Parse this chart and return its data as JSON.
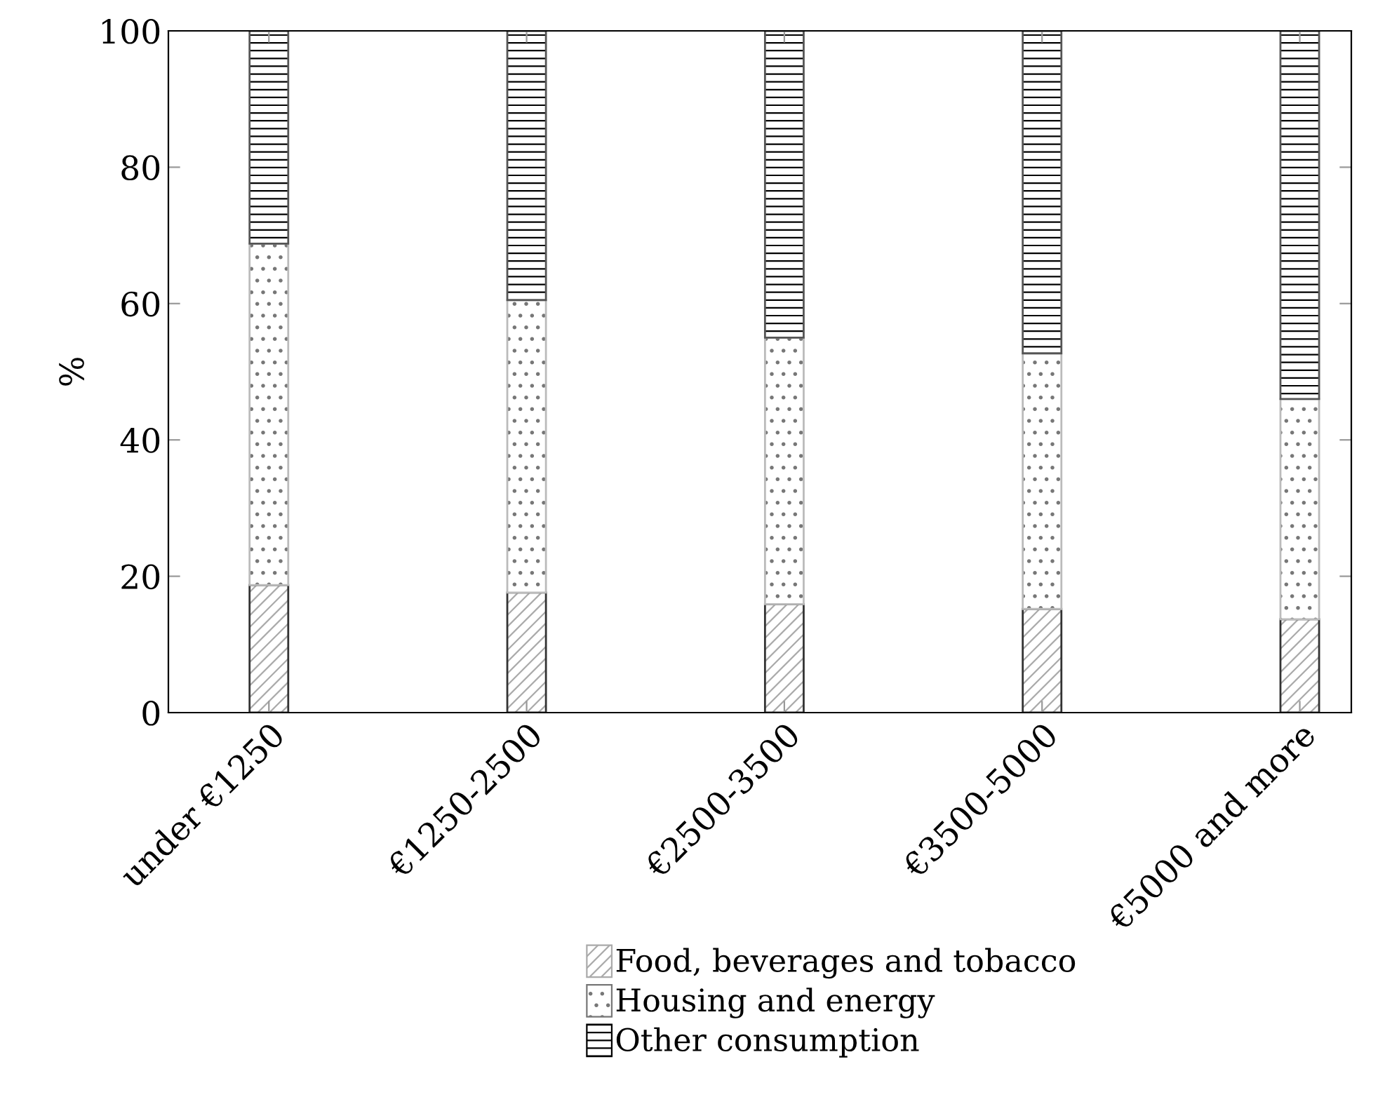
{
  "chart_data": {
    "type": "bar",
    "stacked": true,
    "ylabel": "%",
    "categories": [
      "under €1250",
      "€1250-2500",
      "€2500-3500",
      "€3500-5000",
      "€5000 and more"
    ],
    "series": [
      {
        "name": "Food, beverages and tobacco",
        "color": "#ffffff",
        "values": [
          18.7,
          17.6,
          15.9,
          15.2,
          13.7
        ]
      },
      {
        "name": "Housing and energy",
        "color": "#ffffff",
        "values": [
          50.1,
          42.9,
          39.1,
          37.5,
          32.3
        ]
      },
      {
        "name": "Other consumption",
        "color": "#ffffff",
        "values": [
          31.2,
          39.5,
          45.0,
          47.3,
          54.0
        ]
      }
    ],
    "ylim": [
      0,
      100
    ],
    "yticks": [
      0,
      20,
      40,
      60,
      80,
      100
    ],
    "grid": false,
    "legend": "bottom"
  }
}
